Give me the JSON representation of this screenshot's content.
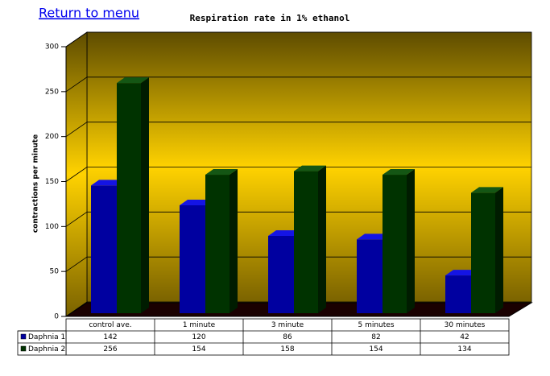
{
  "link": "Return to menu",
  "chart_data": {
    "type": "bar3d",
    "title": "Respiration rate in 1% ethanol",
    "y_label": "contractions per minute",
    "categories": [
      "control ave.",
      "1 minute",
      "3 minute",
      "5 minutes",
      "30 minutes"
    ],
    "series": [
      {
        "name": "Daphnia 1",
        "color": "#0000a0",
        "values": [
          142,
          120,
          86,
          82,
          42
        ]
      },
      {
        "name": "Daphnia 2",
        "color": "#003300",
        "values": [
          256,
          154,
          158,
          154,
          134
        ]
      }
    ],
    "ylim": [
      0,
      300
    ],
    "yticks": [
      0,
      50,
      100,
      150,
      200,
      250,
      300
    ],
    "grid": true
  }
}
